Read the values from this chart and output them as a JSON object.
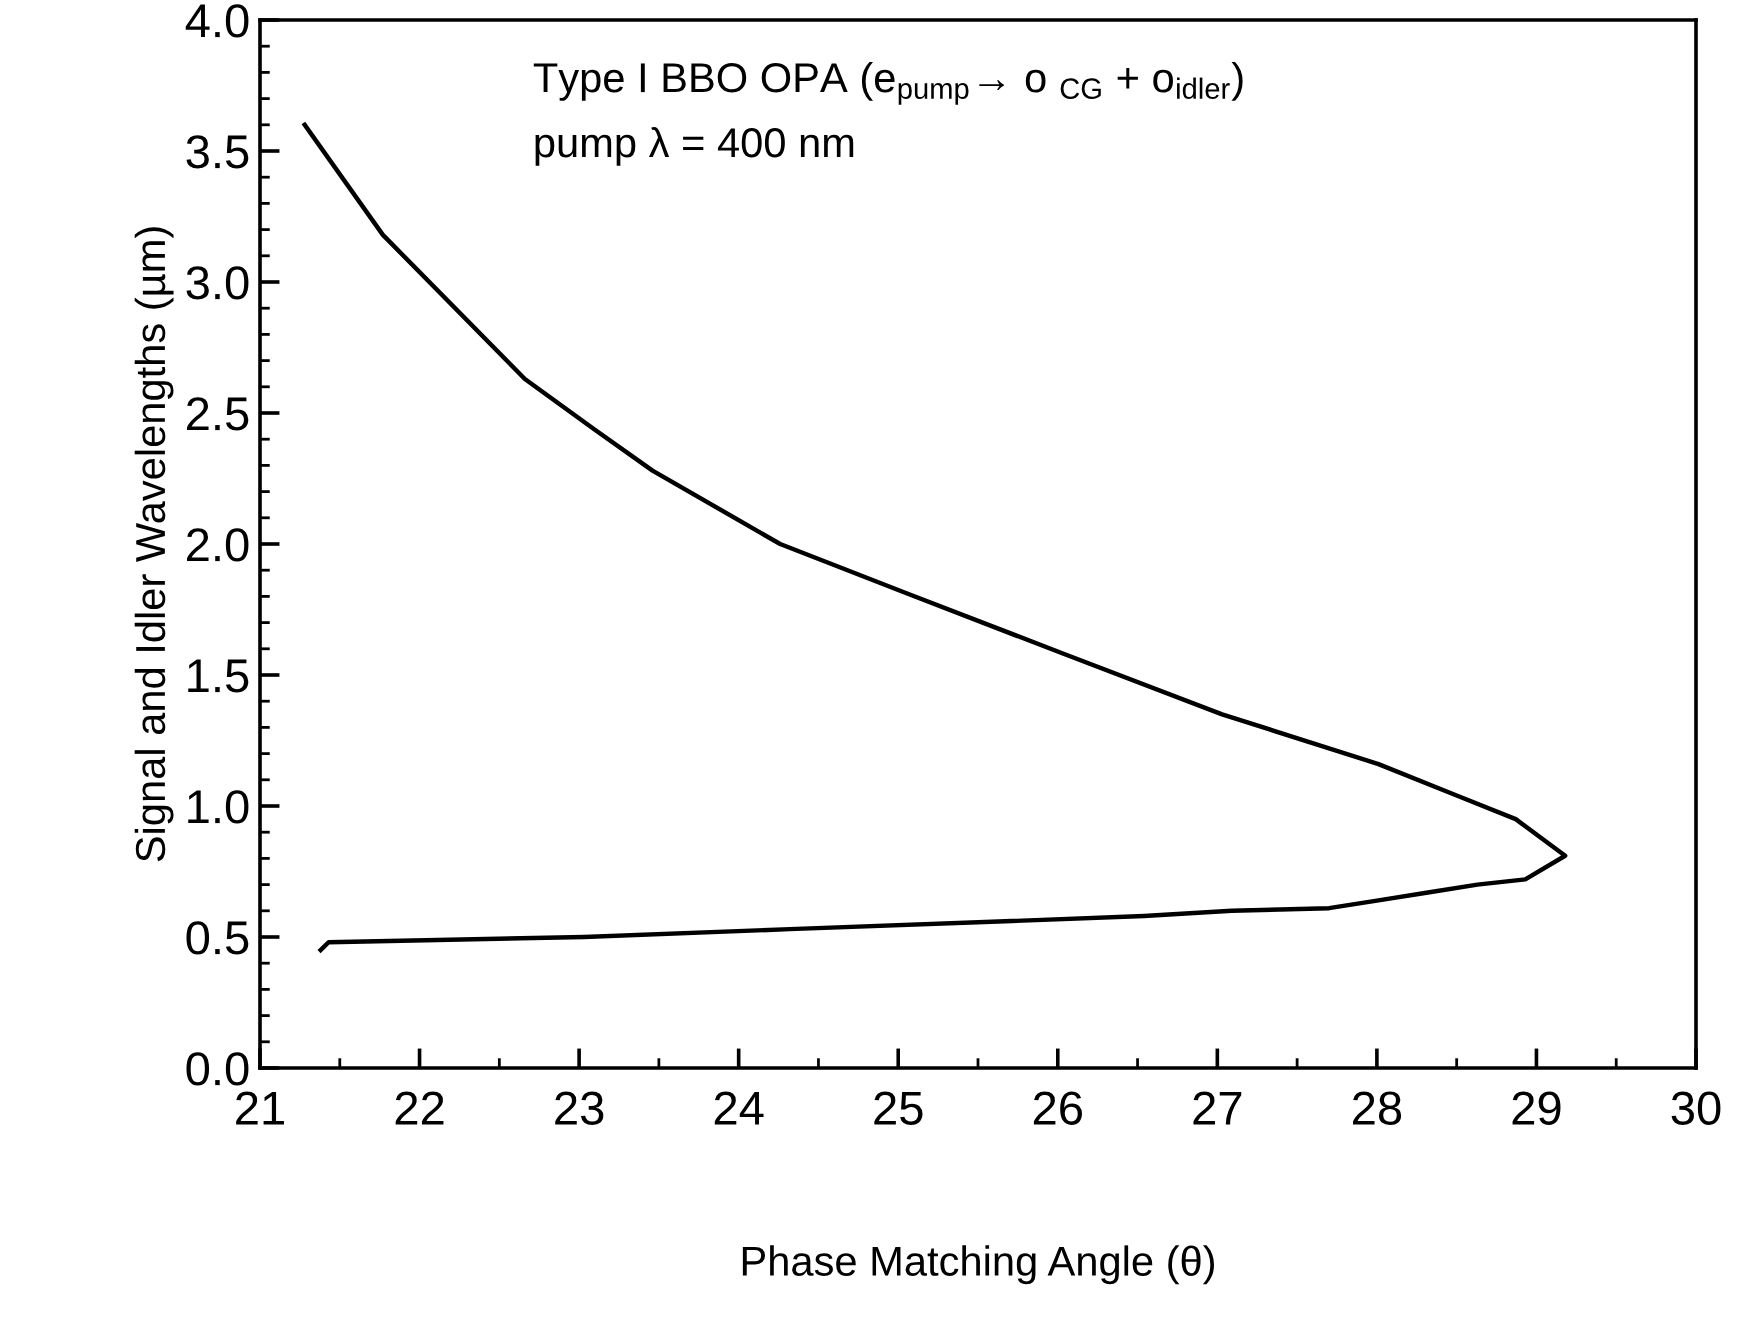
{
  "chart_data": {
    "type": "line",
    "xlabel": "Phase Matching Angle (θ)",
    "ylabel": "Signal and Idler Wavelengths (µm)",
    "annotations": [
      "Type I BBO OPA (e$_{pump}$→ o $_{CG}$ + o$_{idler}$)",
      "pump λ = 400 nm"
    ],
    "series": [
      {
        "color": "#000000",
        "x": [
          21.28,
          21.77,
          22.66,
          23.09,
          23.46,
          24.26,
          25.06,
          26.04,
          27.03,
          28.01,
          28.5,
          28.87,
          29.18,
          28.93,
          28.63,
          28.32,
          28.01,
          27.7,
          27.09,
          26.54,
          25.67,
          24.32,
          23.03,
          21.43,
          21.38
        ],
        "values": [
          3.6,
          3.18,
          2.63,
          2.44,
          2.28,
          2.0,
          1.81,
          1.58,
          1.35,
          1.16,
          1.04,
          0.95,
          0.81,
          0.72,
          0.7,
          0.67,
          0.64,
          0.61,
          0.6,
          0.58,
          0.56,
          0.53,
          0.5,
          0.48,
          0.45
        ]
      }
    ],
    "xlim": [
      21,
      30
    ],
    "ylim": [
      0,
      4
    ],
    "xticks": [
      21,
      22,
      23,
      24,
      25,
      26,
      27,
      28,
      29,
      30
    ],
    "yticks": [
      {
        "value": 0,
        "label": "0.0"
      },
      0.5,
      {
        "value": 1,
        "label": "1.0"
      },
      1.5,
      {
        "value": 2,
        "label": "2.0"
      },
      2.5,
      {
        "value": 3,
        "label": "3.0"
      },
      3.5,
      {
        "value": 4,
        "label": "4.0"
      }
    ],
    "marker": "none",
    "line_style": "solid"
  }
}
